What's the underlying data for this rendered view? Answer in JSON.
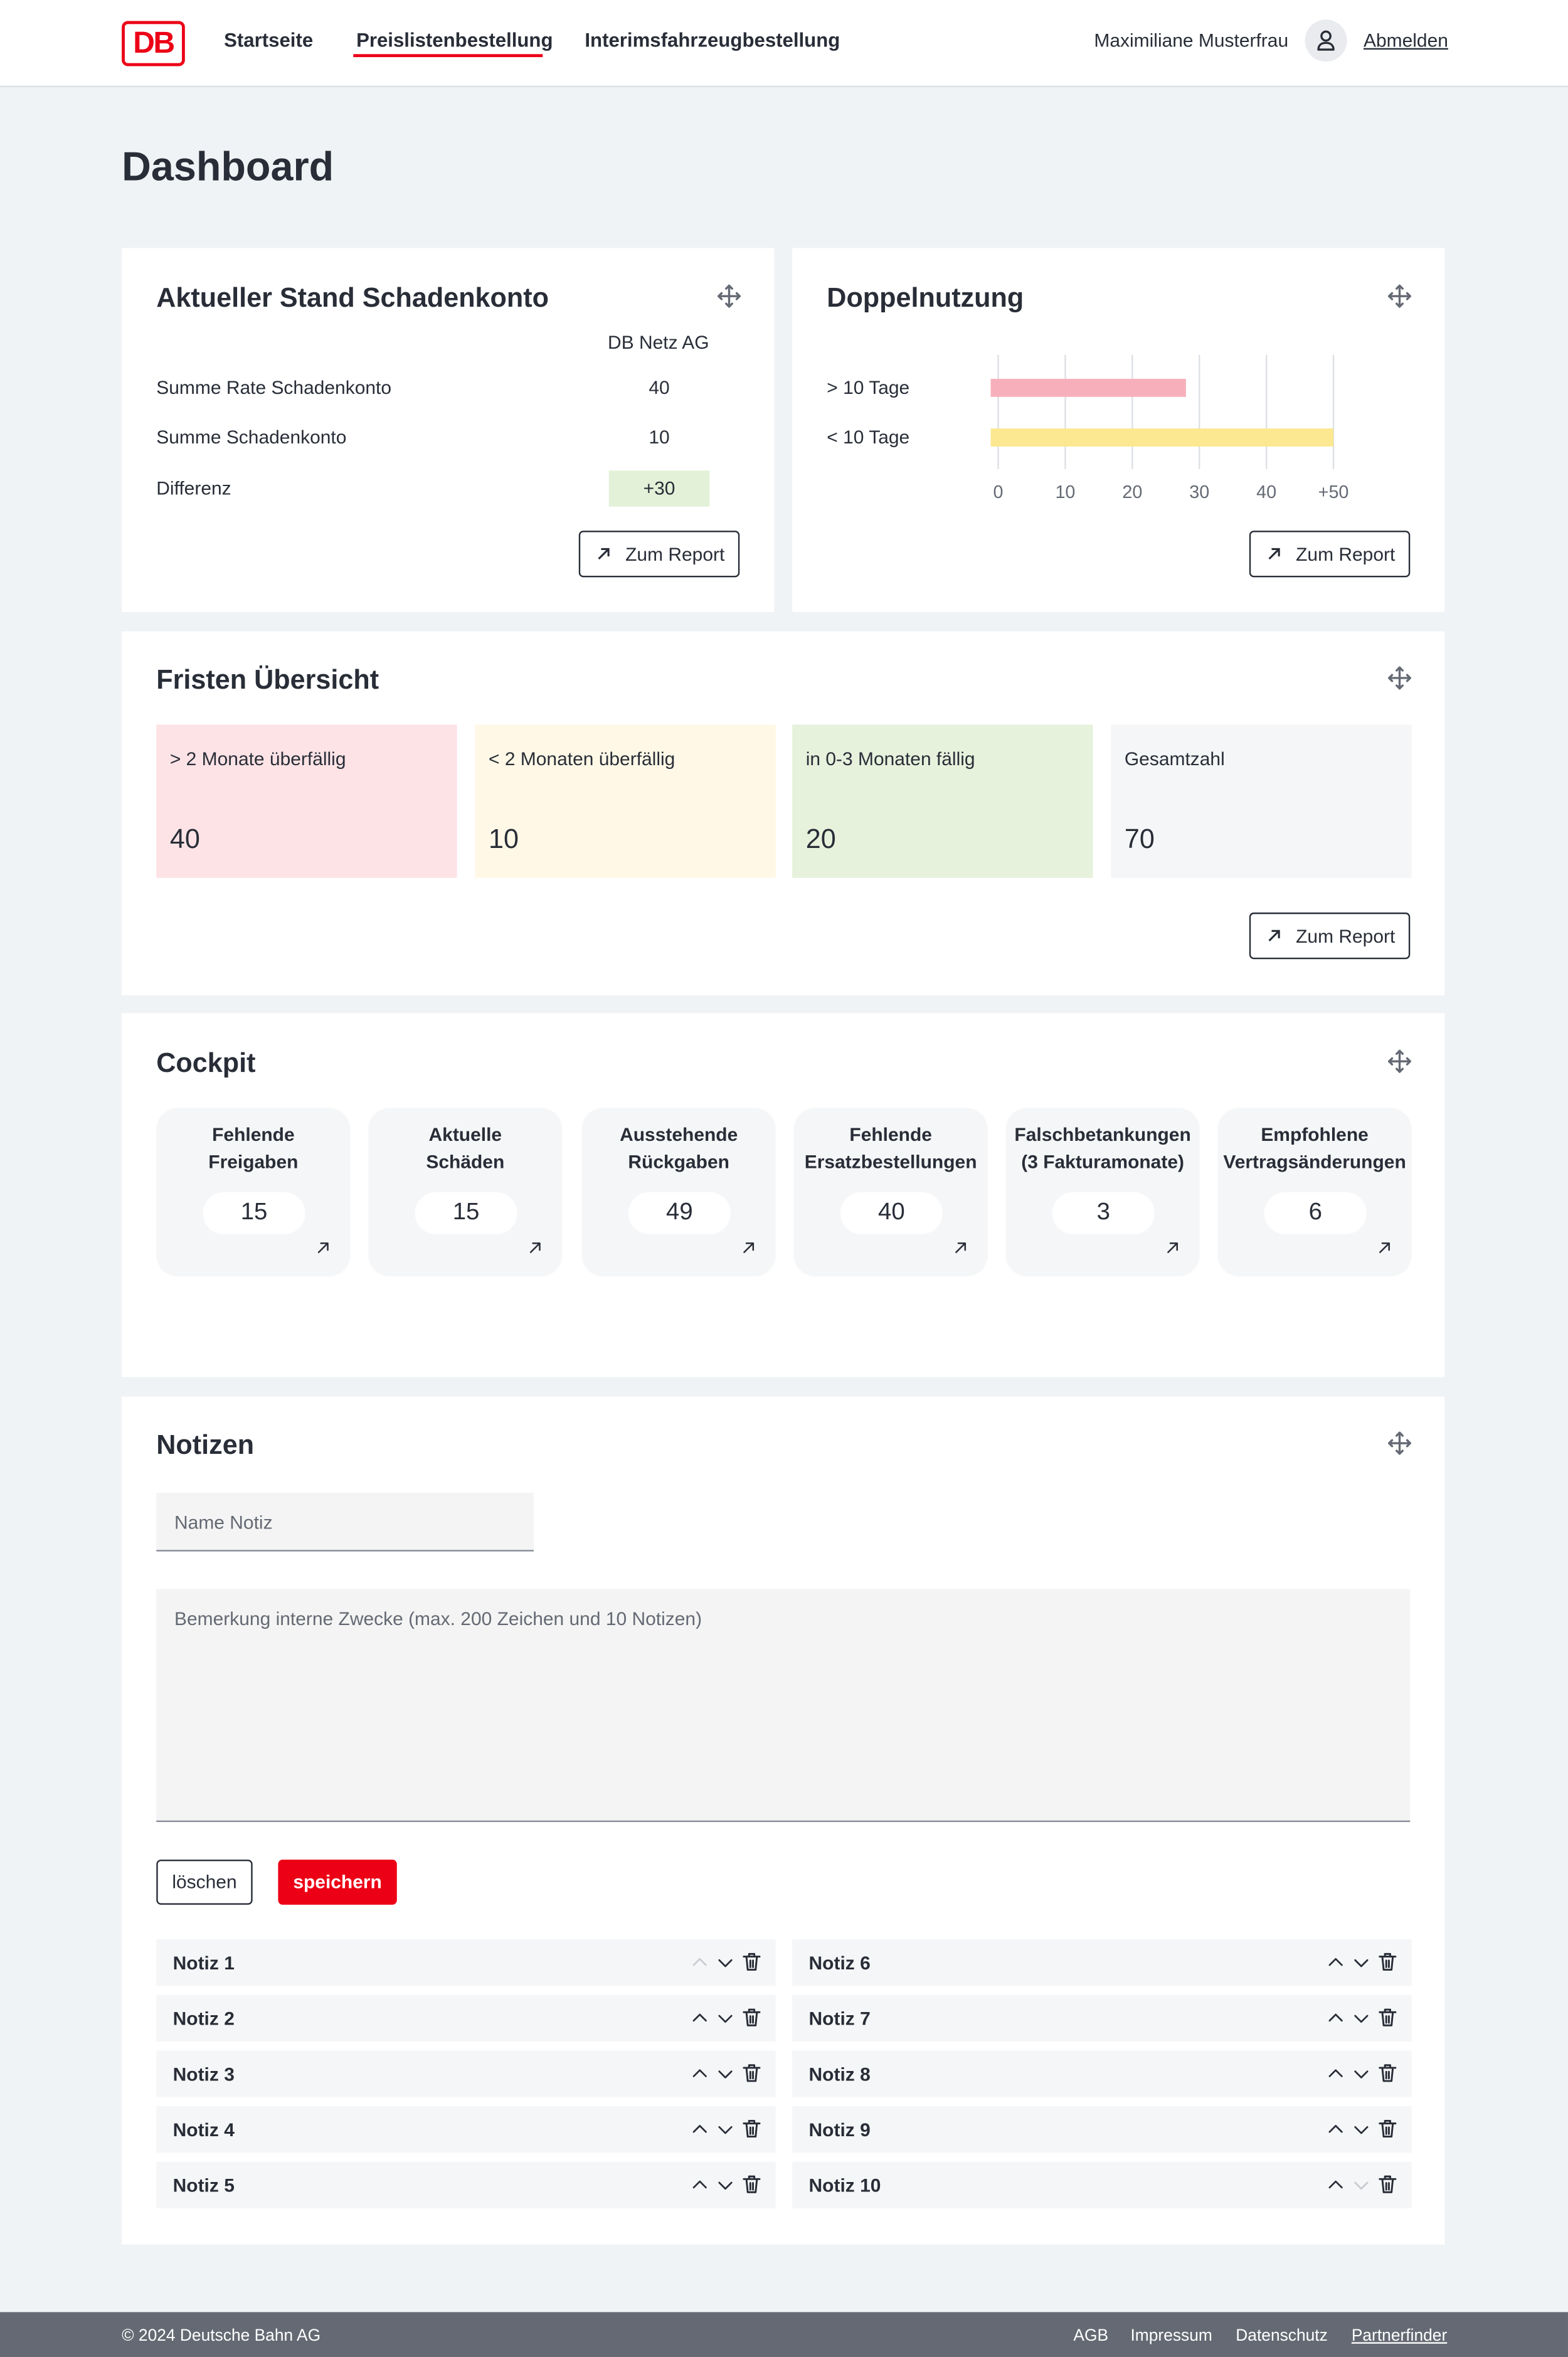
{
  "nav": {
    "logo": "DB",
    "items": [
      "Startseite",
      "Preislistenbestellung",
      "Interimsfahrzeugbestellung"
    ],
    "user": "Maximiliane Musterfrau",
    "logout": "Abmelden"
  },
  "page_title": "Dashboard",
  "schadenkonto": {
    "title": "Aktueller Stand Schadenkonto",
    "column": "DB Netz AG",
    "rows": [
      {
        "label": "Summe Rate Schadenkonto",
        "value": 40
      },
      {
        "label": "Summe Schadenkonto",
        "value": 10
      },
      {
        "label": "Differenz",
        "value": "+30"
      }
    ],
    "button": "Zum Report"
  },
  "doppelnutzung": {
    "title": "Doppelnutzung",
    "type": "bar",
    "categories": [
      "> 10 Tage",
      "< 10 Tage"
    ],
    "values": [
      28,
      50
    ],
    "colors": [
      "#f7b0bb",
      "#fbe890"
    ],
    "xlim": [
      0,
      50
    ],
    "xticks": [
      0,
      10,
      20,
      30,
      40,
      {
        "value": 50,
        "label": "+50"
      }
    ],
    "grid": true,
    "button": "Zum Report"
  },
  "fristen": {
    "title": "Fristen Übersicht",
    "tiles": [
      {
        "label": "> 2 Monate überfällig",
        "value": 40,
        "color": "#fde3e6"
      },
      {
        "label": "< 2 Monaten überfällig",
        "value": 10,
        "color": "#fff8e6"
      },
      {
        "label": "in 0-3 Monaten fällig",
        "value": 20,
        "color": "#e6f2dc"
      },
      {
        "label": "Gesamtzahl",
        "value": 70,
        "color": "#f5f6f7"
      }
    ],
    "button": "Zum Report"
  },
  "cockpit": {
    "title": "Cockpit",
    "tiles": [
      {
        "label": "Fehlende\nFreigaben",
        "value": 15
      },
      {
        "label": "Aktuelle\nSchäden",
        "value": 15
      },
      {
        "label": "Ausstehende\nRückgaben",
        "value": 49
      },
      {
        "label": "Fehlende\nErsatzbestellungen",
        "value": 40
      },
      {
        "label": "Falschbetankungen\n(3 Fakturamonate)",
        "value": 3
      },
      {
        "label": "Empfohlene\nVertragsänderungen",
        "value": 6
      }
    ]
  },
  "notizen": {
    "title": "Notizen",
    "name_placeholder": "Name Notiz",
    "text_placeholder": "Bemerkung interne Zwecke (max. 200 Zeichen und 10 Notizen)",
    "delete": "löschen",
    "save": "speichern",
    "items": [
      "Notiz 1",
      "Notiz 2",
      "Notiz 3",
      "Notiz 4",
      "Notiz 5",
      "Notiz 6",
      "Notiz 7",
      "Notiz 8",
      "Notiz 9",
      "Notiz 10"
    ]
  },
  "footer": {
    "copyright": "© 2024 Deutsche Bahn AG",
    "links": [
      "AGB",
      "Impressum",
      "Datenschutz",
      "Partnerfinder"
    ]
  }
}
